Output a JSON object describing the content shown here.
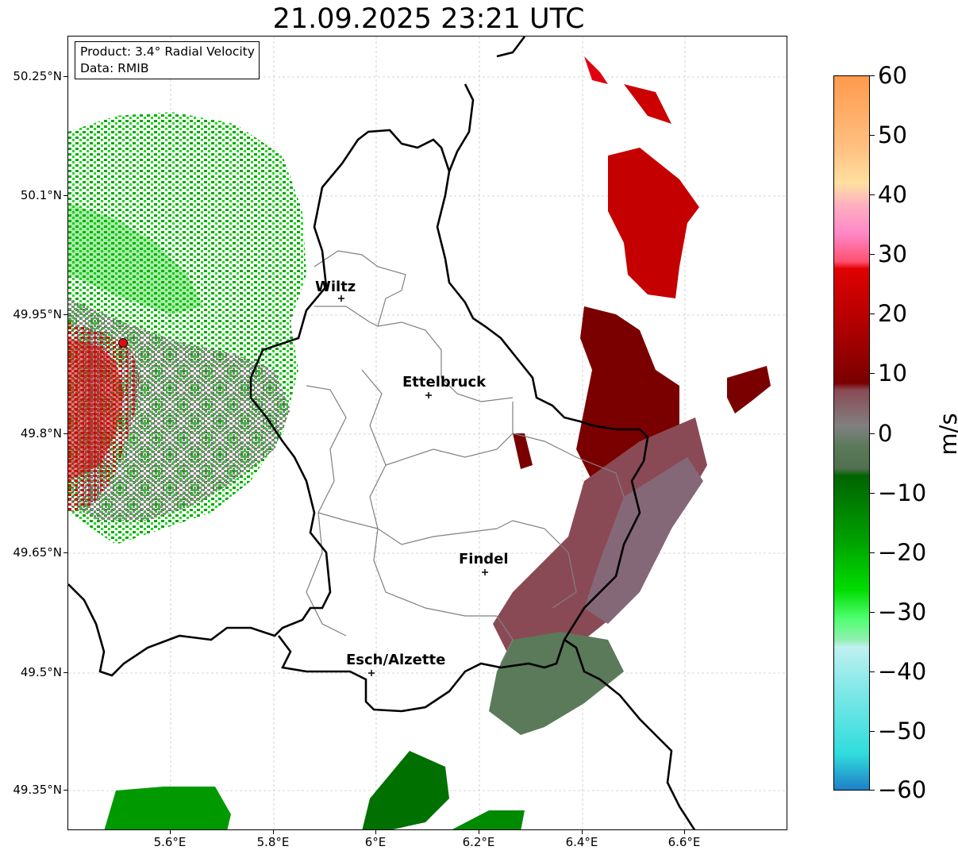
{
  "title": "21.09.2025 23:21 UTC",
  "info": {
    "product_line": "Product: 3.4° Radial Velocity",
    "data_line": "Data: RMIB"
  },
  "axes": {
    "lat_labels": [
      "50.25°N",
      "50.1°N",
      "49.95°N",
      "49.8°N",
      "49.65°N",
      "49.5°N",
      "49.35°N"
    ],
    "lon_labels": [
      "5.6°E",
      "5.8°E",
      "6°E",
      "6.2°E",
      "6.4°E",
      "6.6°E"
    ]
  },
  "cities": [
    {
      "name": "Wiltz"
    },
    {
      "name": "Ettelbruck"
    },
    {
      "name": "Findel"
    },
    {
      "name": "Esch/Alzette"
    }
  ],
  "colorbar": {
    "unit": "m/s",
    "tick_labels": [
      "60",
      "50",
      "40",
      "30",
      "20",
      "10",
      "0",
      "−10",
      "−20",
      "−30",
      "−40",
      "−50",
      "−60"
    ],
    "colors": {
      "high": "#ff9a4d",
      "pink": "#ff88c8",
      "red": "#e00000",
      "darkred": "#7a0000",
      "muted_red": "#8a4a55",
      "gray": "#808080",
      "muted_green": "#5a7a5a",
      "darkgreen": "#006400",
      "green": "#00dd00",
      "lightgreen": "#90f0b0",
      "cyan": "#30dcdc",
      "blue": "#1e80c8"
    }
  }
}
